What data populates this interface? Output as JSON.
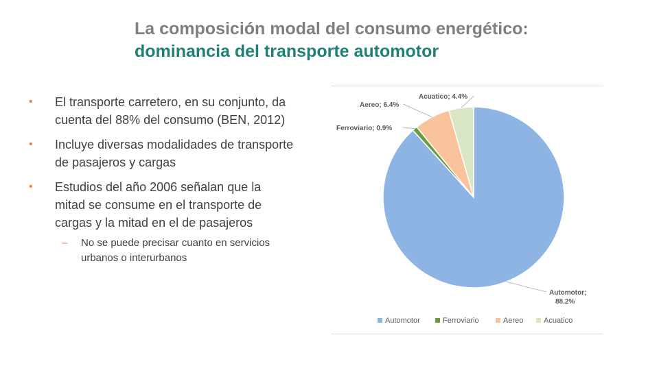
{
  "title": {
    "line1": "La composición modal del consumo energético:",
    "line2": "dominancia del transporte automotor"
  },
  "bullets": [
    "El transporte carretero, en su conjunto, da cuenta del 88% del consumo (BEN, 2012)",
    "Incluye diversas modalidades de transporte de pasajeros y cargas",
    "Estudios del año 2006 señalan que la mitad se consume en el transporte de cargas y la mitad en el de pasajeros"
  ],
  "sub_bullet": "No se puede precisar cuanto en servicios urbanos o interurbanos",
  "chart_data": {
    "type": "pie",
    "categories": [
      "Automotor",
      "Ferroviario",
      "Aereo",
      "Acuatico"
    ],
    "values": [
      88.2,
      0.9,
      6.4,
      4.4
    ],
    "slice_labels": [
      "Automotor;",
      "Ferroviario; 0.9%",
      "Aereo; 6.4%",
      "Acuatico; 4.4%"
    ],
    "automotor_value_label": "88.2%",
    "colors": [
      "#8eb4e3",
      "#6b9a3f",
      "#f8c29b",
      "#d9e6c3"
    ],
    "legend_position": "bottom"
  }
}
